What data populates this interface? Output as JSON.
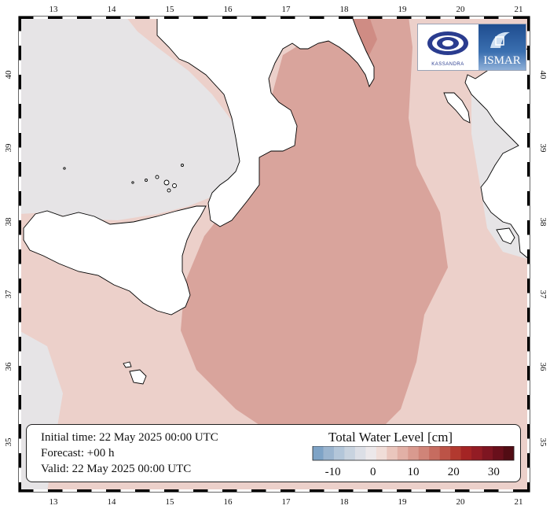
{
  "map": {
    "lon_ticks": [
      "13",
      "14",
      "15",
      "16",
      "17",
      "18",
      "19",
      "20",
      "21"
    ],
    "lat_ticks": [
      "35",
      "36",
      "37",
      "38",
      "39",
      "40"
    ],
    "colors": {
      "land": "#ffffff",
      "sea_low": "#e6e4e6",
      "sea_mid": "#ecd0ca",
      "sea_high": "#d9a49c",
      "sea_top": "#cf8c84",
      "coast": "#000000"
    }
  },
  "info": {
    "initial_time": "Initial time: 22 May 2025 00:00 UTC",
    "forecast": "Forecast: +00 h",
    "valid": "Valid: 22 May 2025 00:00 UTC"
  },
  "legend": {
    "title": "Total Water Level [cm]",
    "labels": [
      "-10",
      "0",
      "10",
      "20",
      "30"
    ],
    "colors": [
      "#7ea3c6",
      "#9bb5cf",
      "#b3c6d9",
      "#c8d3df",
      "#dcdfe6",
      "#ece8ea",
      "#f0ddd8",
      "#eac6bd",
      "#e2b0a6",
      "#d99a8f",
      "#d08478",
      "#c66c60",
      "#bc5347",
      "#b2392f",
      "#a42424",
      "#931c24",
      "#7e1521",
      "#690f1b",
      "#520c14"
    ]
  },
  "logos": {
    "kassandra": "KASSANDRA",
    "ismar": "ISMAR"
  }
}
